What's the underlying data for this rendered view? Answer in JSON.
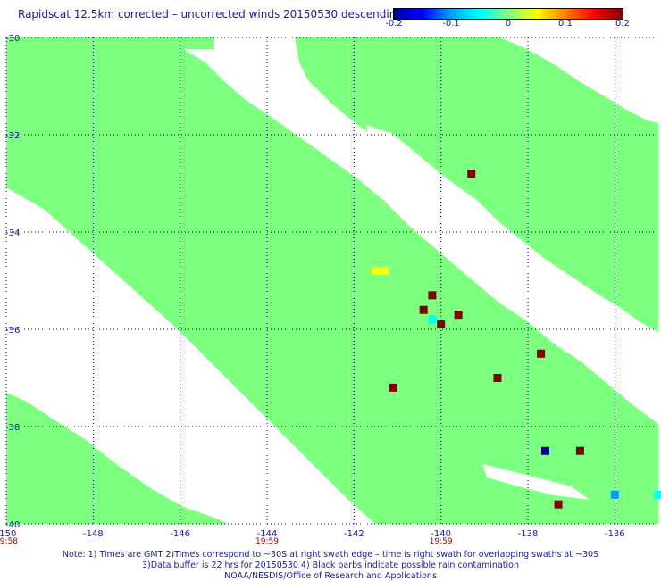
{
  "title": "Rapidscat 12.5km corrected – uncorrected winds 20150530 descending",
  "colors": {
    "land_background": "#ffffff",
    "swath": "#7dff80",
    "grid": "#000060",
    "axis_text": "#1a1aa0",
    "time_text": "#a00000"
  },
  "colorbar": {
    "min": -0.2,
    "max": 0.2,
    "tick_labels": [
      "-0.2",
      "-0.1",
      "0",
      "0.1",
      "0.2"
    ],
    "tick_values": [
      -0.2,
      -0.1,
      0,
      0.1,
      0.2
    ],
    "stops": [
      "#000090",
      "#0000ff",
      "#00a0ff",
      "#00ffff",
      "#80ff80",
      "#ffff00",
      "#ff8000",
      "#ff0000",
      "#800000"
    ]
  },
  "chart_data": {
    "type": "heatmap",
    "title": "Rapidscat 12.5km corrected – uncorrected winds 20150530 descending",
    "xlim": [
      -150,
      -135
    ],
    "ylim": [
      -40,
      -30
    ],
    "x_ticks": [
      -150,
      -148,
      -146,
      -144,
      -142,
      -140,
      -138,
      -136
    ],
    "x_tick_labels": [
      "-150",
      "-148",
      "-146",
      "-144",
      "-142",
      "-140",
      "-138",
      "-136"
    ],
    "y_ticks": [
      -30,
      -32,
      -34,
      -36,
      -38,
      -40
    ],
    "y_tick_labels": [
      "-30",
      "-32",
      "-34",
      "-36",
      "-38",
      "-40"
    ],
    "grid": true,
    "time_labels": [
      {
        "lon": -150,
        "text": "19:58"
      },
      {
        "lon": -144,
        "text": "19:59"
      },
      {
        "lon": -140,
        "text": "19:59"
      }
    ],
    "nonzero_cells": [
      {
        "lon": -139.3,
        "lat": -32.8,
        "value": 0.2
      },
      {
        "lon": -141.5,
        "lat": -34.8,
        "value": 0.06
      },
      {
        "lon": -141.3,
        "lat": -34.8,
        "value": 0.05
      },
      {
        "lon": -140.2,
        "lat": -35.3,
        "value": 0.2
      },
      {
        "lon": -140.4,
        "lat": -35.6,
        "value": 0.2
      },
      {
        "lon": -140.2,
        "lat": -35.8,
        "value": -0.04
      },
      {
        "lon": -139.6,
        "lat": -35.7,
        "value": 0.2
      },
      {
        "lon": -140.0,
        "lat": -35.9,
        "value": 0.2
      },
      {
        "lon": -137.7,
        "lat": -36.5,
        "value": 0.2
      },
      {
        "lon": -138.7,
        "lat": -37.0,
        "value": 0.2
      },
      {
        "lon": -141.1,
        "lat": -37.2,
        "value": 0.2
      },
      {
        "lon": -137.6,
        "lat": -38.5,
        "value": -0.2
      },
      {
        "lon": -136.8,
        "lat": -38.5,
        "value": 0.2
      },
      {
        "lon": -136.0,
        "lat": -39.4,
        "value": -0.12
      },
      {
        "lon": -137.3,
        "lat": -39.6,
        "value": 0.2
      },
      {
        "lon": -135.0,
        "lat": -39.4,
        "value": -0.05
      }
    ]
  },
  "notes": [
    "Note: 1) Times are GMT 2)Times correspond to ~30S at right swath edge – time is right swath for overlapping swaths at ~30S",
    "3)Data buffer is 22 hrs for 20150530 4) Black barbs indicate possible rain contamination",
    "NOAA/NESDIS/Office of Research and Applications"
  ]
}
